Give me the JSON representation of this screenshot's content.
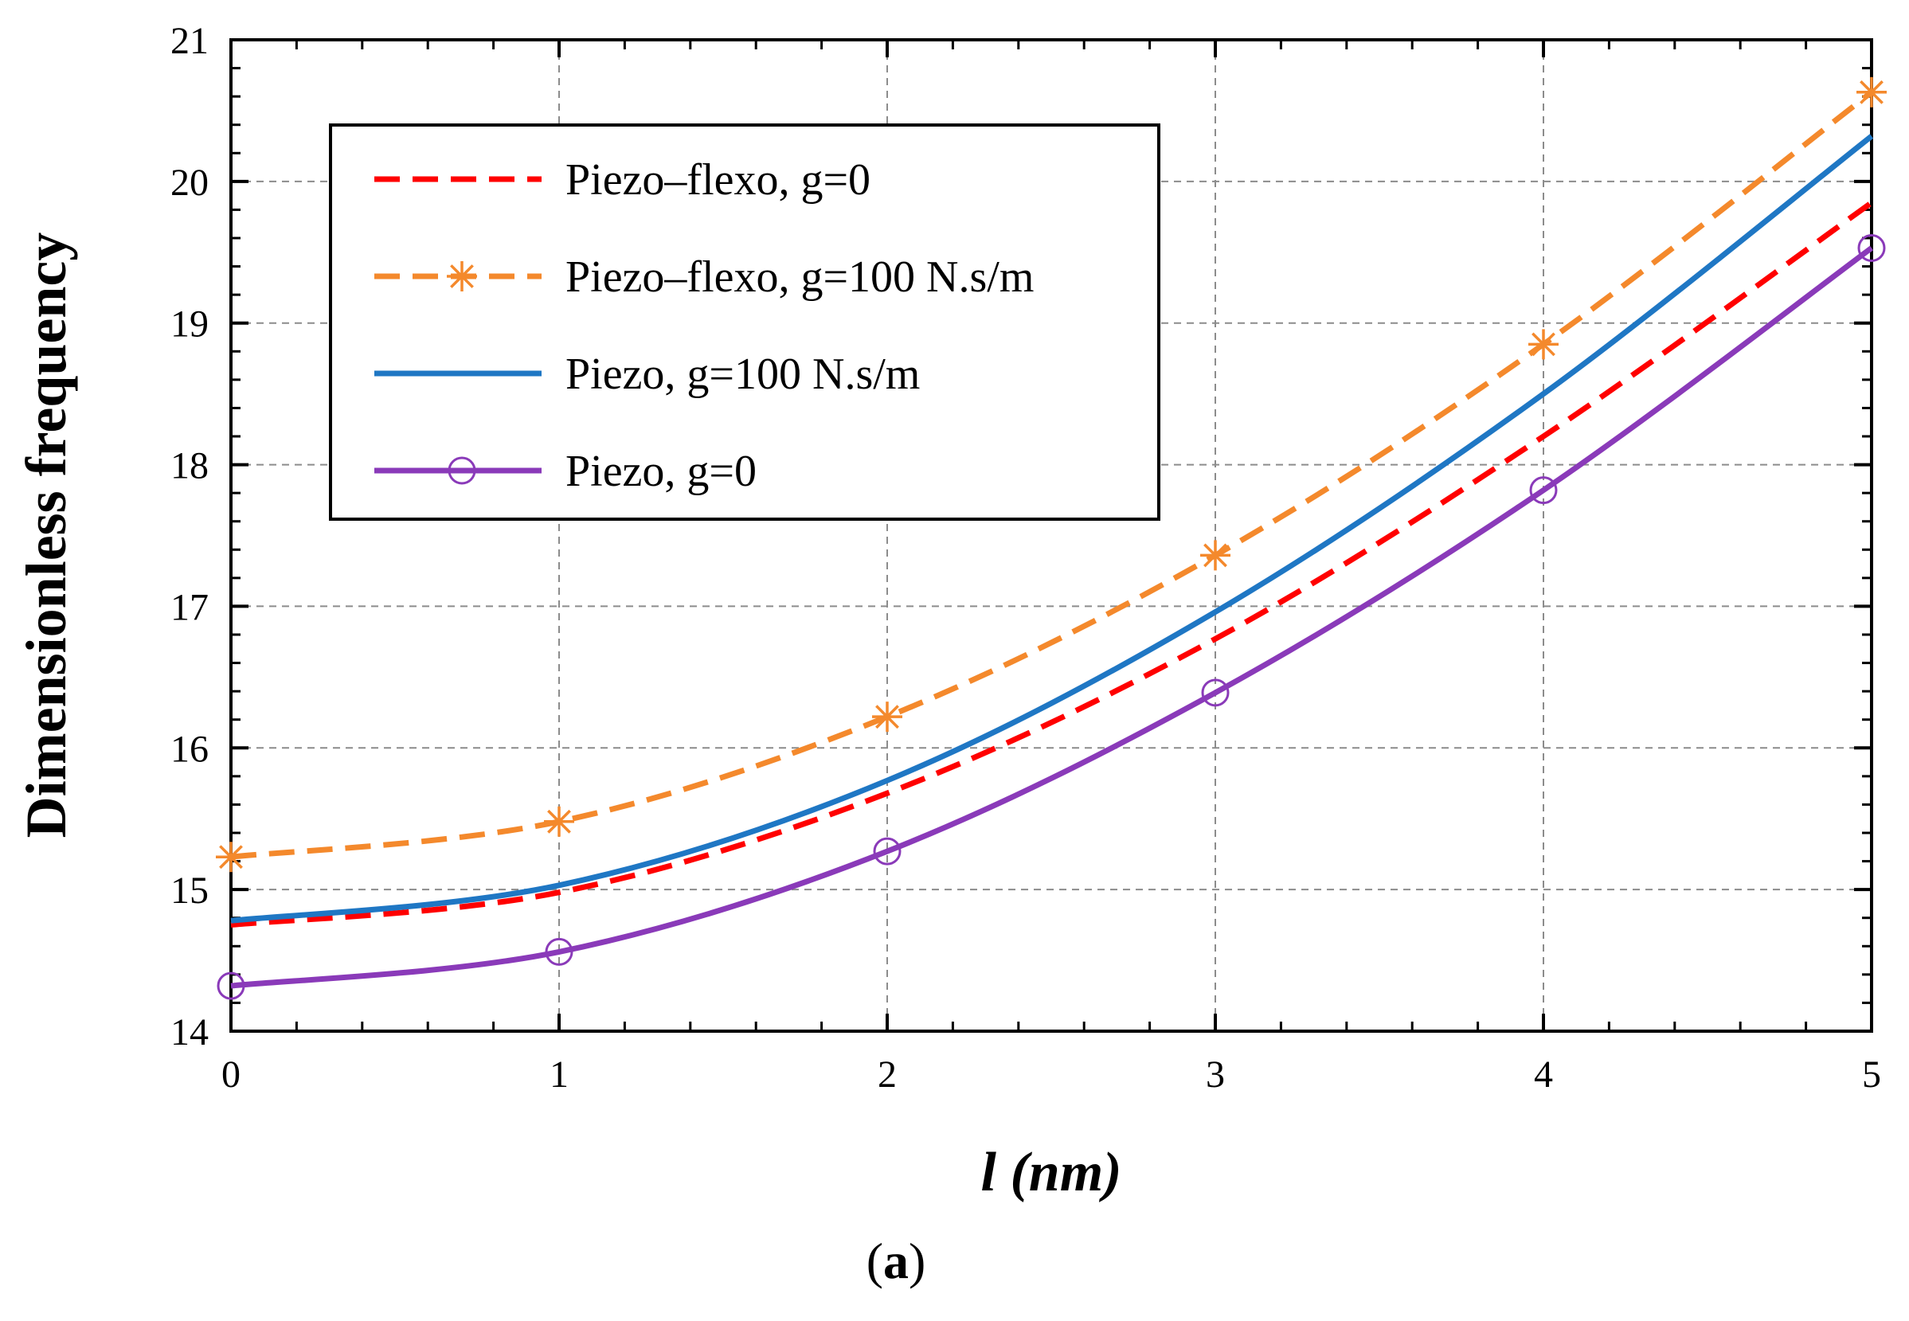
{
  "chart_data": {
    "type": "line",
    "title": "",
    "xlabel": "l (nm)",
    "ylabel": "Dimensionless frequency",
    "caption_letter": "a",
    "xlim": [
      0,
      5
    ],
    "ylim": [
      14,
      21
    ],
    "xticks": [
      "0",
      "1",
      "2",
      "3",
      "4",
      "5"
    ],
    "yticks": [
      "14",
      "15",
      "16",
      "17",
      "18",
      "19",
      "20",
      "21"
    ],
    "grid": true,
    "legend_position": "top-left",
    "x": [
      0,
      1,
      2,
      3,
      4,
      5
    ],
    "series": [
      {
        "name": "Piezo–flexo, g=0",
        "values": [
          14.75,
          14.98,
          15.68,
          16.77,
          18.2,
          19.85
        ],
        "color": "#ff0000",
        "style": "dashed",
        "marker": "none"
      },
      {
        "name": "Piezo–flexo, g=100 N.s/m",
        "values": [
          15.23,
          15.48,
          16.22,
          17.36,
          18.85,
          20.63
        ],
        "color": "#f4892c",
        "style": "dashed",
        "marker": "asterisk"
      },
      {
        "name": "Piezo, g=100 N.s/m",
        "values": [
          14.78,
          15.03,
          15.77,
          16.96,
          18.5,
          20.32
        ],
        "color": "#1f77c4",
        "style": "solid",
        "marker": "none"
      },
      {
        "name": "Piezo, g=0",
        "values": [
          14.32,
          14.56,
          15.27,
          16.39,
          17.82,
          19.53
        ],
        "color": "#8a3ab9",
        "style": "solid",
        "marker": "circle"
      }
    ]
  }
}
